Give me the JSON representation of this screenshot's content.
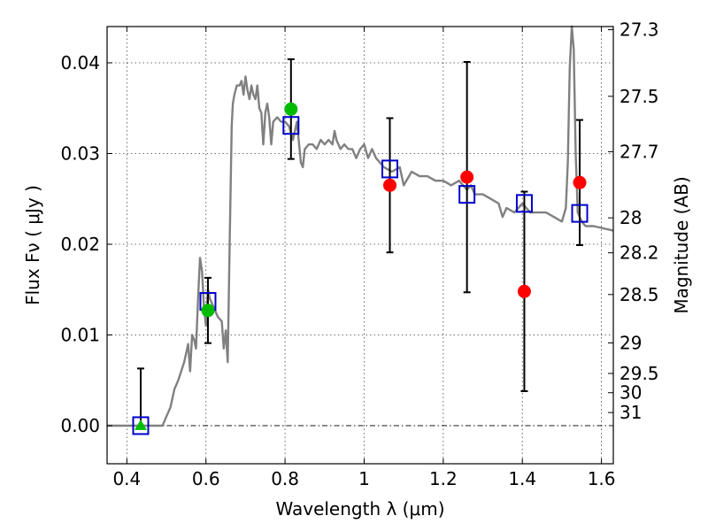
{
  "chart_data": {
    "type": "scatter",
    "xlabel": "Wavelength  λ (μm)",
    "ylabel": "Flux  Fν  ( μJy )",
    "y2label": "Magnitude (AB)",
    "xlim": [
      0.35,
      1.63
    ],
    "ylim": [
      -0.0042,
      0.044
    ],
    "grid": true,
    "x_ticks": [
      0.4,
      0.6,
      0.8,
      1.0,
      1.2,
      1.4,
      1.6
    ],
    "x_tick_labels": [
      "0.4",
      "0.6",
      "0.8",
      "1",
      "1.2",
      "1.4",
      "1.6"
    ],
    "y_ticks": [
      0.0,
      0.01,
      0.02,
      0.03,
      0.04
    ],
    "y_tick_labels": [
      "0.00",
      "0.01",
      "0.02",
      "0.03",
      "0.04"
    ],
    "mag_ticks": [
      27.3,
      27.5,
      27.7,
      28,
      28.2,
      28.5,
      29,
      29.5,
      30,
      31
    ],
    "mag_tick_labels": [
      "27.3",
      "27.5",
      "27.7",
      "28",
      "28.2",
      "28.5",
      "29",
      "29.5",
      "30",
      "31"
    ],
    "colors": {
      "template": "#808080",
      "model_box": "#0000cc",
      "detected": "#00bb00",
      "other": "#ff0000",
      "errorbar": "#000000"
    },
    "model_spectrum": {
      "x": [
        0.35,
        0.49,
        0.5,
        0.51,
        0.52,
        0.53,
        0.545,
        0.555,
        0.56,
        0.565,
        0.57,
        0.575,
        0.58,
        0.585,
        0.59,
        0.595,
        0.6,
        0.605,
        0.61,
        0.615,
        0.62,
        0.63,
        0.64,
        0.645,
        0.65,
        0.655,
        0.66,
        0.665,
        0.668,
        0.672,
        0.678,
        0.685,
        0.69,
        0.695,
        0.7,
        0.705,
        0.71,
        0.715,
        0.72,
        0.725,
        0.73,
        0.735,
        0.74,
        0.745,
        0.75,
        0.755,
        0.76,
        0.765,
        0.77,
        0.78,
        0.79,
        0.8,
        0.81,
        0.82,
        0.83,
        0.84,
        0.845,
        0.85,
        0.86,
        0.87,
        0.88,
        0.89,
        0.9,
        0.91,
        0.92,
        0.925,
        0.93,
        0.94,
        0.95,
        0.96,
        0.97,
        0.98,
        0.99,
        1.0,
        1.01,
        1.02,
        1.03,
        1.04,
        1.05,
        1.07,
        1.09,
        1.1,
        1.12,
        1.14,
        1.16,
        1.18,
        1.2,
        1.22,
        1.24,
        1.26,
        1.27,
        1.28,
        1.3,
        1.32,
        1.34,
        1.35,
        1.36,
        1.38,
        1.4,
        1.42,
        1.44,
        1.46,
        1.48,
        1.5,
        1.51,
        1.515,
        1.52,
        1.525,
        1.53,
        1.535,
        1.54,
        1.55,
        1.56,
        1.58,
        1.6,
        1.63
      ],
      "y": [
        0.0,
        0.0,
        0.001,
        0.002,
        0.004,
        0.005,
        0.007,
        0.009,
        0.006,
        0.01,
        0.0095,
        0.0085,
        0.014,
        0.0185,
        0.017,
        0.013,
        0.011,
        0.015,
        0.014,
        0.0135,
        0.013,
        0.012,
        0.0115,
        0.0085,
        0.0105,
        0.007,
        0.02,
        0.033,
        0.0355,
        0.0365,
        0.0375,
        0.0375,
        0.038,
        0.0365,
        0.0385,
        0.037,
        0.036,
        0.0375,
        0.0365,
        0.036,
        0.0375,
        0.035,
        0.0345,
        0.031,
        0.0345,
        0.0355,
        0.034,
        0.031,
        0.0335,
        0.034,
        0.0335,
        0.0335,
        0.033,
        0.0315,
        0.0335,
        0.029,
        0.0285,
        0.0305,
        0.031,
        0.031,
        0.0305,
        0.0315,
        0.031,
        0.0315,
        0.031,
        0.0325,
        0.0315,
        0.0305,
        0.031,
        0.0305,
        0.0305,
        0.0295,
        0.0305,
        0.031,
        0.0295,
        0.0305,
        0.0295,
        0.029,
        0.0285,
        0.028,
        0.0285,
        0.0265,
        0.028,
        0.0275,
        0.0275,
        0.027,
        0.027,
        0.0265,
        0.027,
        0.026,
        0.0265,
        0.0255,
        0.0255,
        0.025,
        0.0245,
        0.023,
        0.024,
        0.0235,
        0.0245,
        0.0235,
        0.0235,
        0.0235,
        0.023,
        0.0225,
        0.024,
        0.029,
        0.0395,
        0.0445,
        0.0415,
        0.03,
        0.0235,
        0.0225,
        0.022,
        0.022,
        0.0218,
        0.0215
      ]
    },
    "model_boxes": {
      "x": [
        0.435,
        0.605,
        0.815,
        1.065,
        1.26,
        1.405,
        1.545
      ],
      "y": [
        0.0,
        0.0137,
        0.0331,
        0.0283,
        0.0255,
        0.0245,
        0.0234
      ]
    },
    "observed": [
      {
        "x": 0.435,
        "y": 0.0,
        "err_lo": 0.0,
        "err_hi": 0.0063,
        "color": "#00bb00",
        "marker": "triangle"
      },
      {
        "x": 0.605,
        "y": 0.0127,
        "err_lo": 0.0036,
        "err_hi": 0.0036,
        "color": "#00bb00",
        "marker": "circle"
      },
      {
        "x": 0.815,
        "y": 0.0349,
        "err_lo": 0.0055,
        "err_hi": 0.0055,
        "color": "#00bb00",
        "marker": "circle"
      },
      {
        "x": 1.065,
        "y": 0.0265,
        "err_lo": 0.0074,
        "err_hi": 0.0074,
        "color": "#ff0000",
        "marker": "circle"
      },
      {
        "x": 1.26,
        "y": 0.0274,
        "err_lo": 0.0127,
        "err_hi": 0.0127,
        "color": "#ff0000",
        "marker": "circle"
      },
      {
        "x": 1.405,
        "y": 0.0148,
        "err_lo": 0.011,
        "err_hi": 0.011,
        "color": "#ff0000",
        "marker": "circle"
      },
      {
        "x": 1.545,
        "y": 0.0268,
        "err_lo": 0.0069,
        "err_hi": 0.0069,
        "color": "#ff0000",
        "marker": "circle"
      }
    ]
  }
}
